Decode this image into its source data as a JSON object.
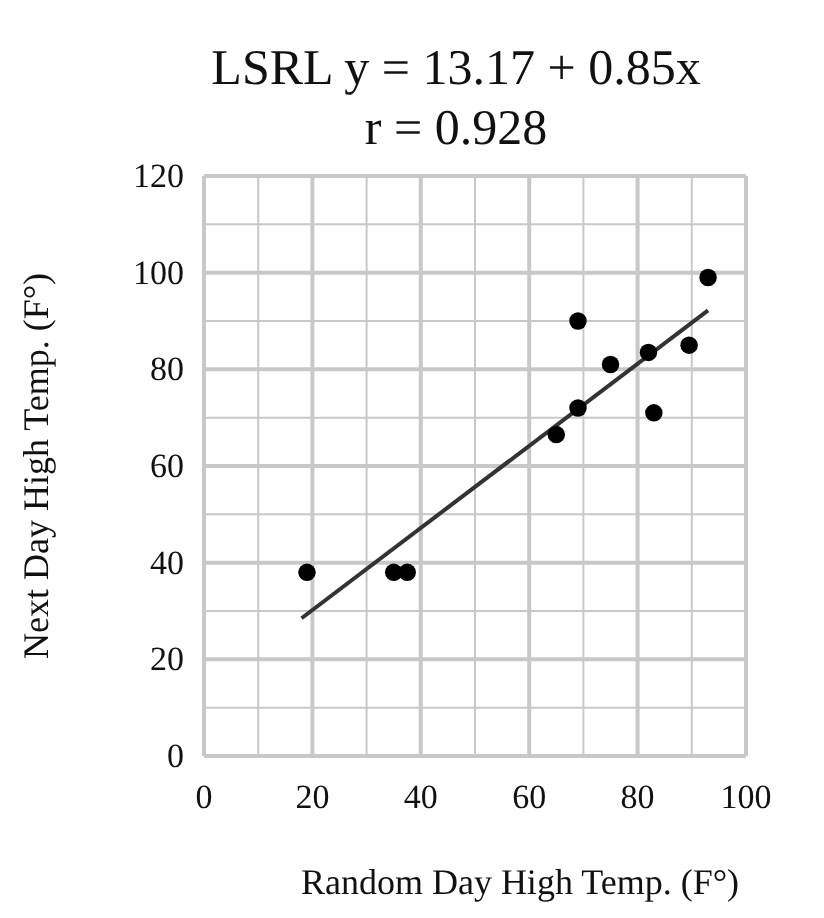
{
  "chart_data": {
    "type": "scatter",
    "title": "LSRL  y = 13.17 + 0.85x",
    "subtitle": "r = 0.928",
    "xlabel": "Random Day High Temp. (F°)",
    "ylabel": "Next Day High Temp. (F°)",
    "series": [
      {
        "color": "#000000",
        "marker": "circle",
        "x": [
          19,
          35,
          37.5,
          65,
          69,
          69,
          75,
          82,
          83,
          89.5,
          93
        ],
        "values": [
          38,
          38,
          38,
          66.5,
          90,
          72,
          81,
          83.5,
          71,
          85,
          99
        ]
      },
      {
        "type": "line",
        "color": "#333333",
        "marker": "none",
        "x": [
          18,
          93
        ],
        "values": [
          28.5,
          92.2
        ]
      }
    ],
    "xlim": [
      0,
      100
    ],
    "ylim": [
      0,
      120
    ],
    "xticks": [
      0,
      {
        "value": 10,
        "label": null
      },
      20,
      {
        "value": 30,
        "label": null
      },
      40,
      {
        "value": 50,
        "label": null
      },
      60,
      {
        "value": 70,
        "label": null
      },
      80,
      {
        "value": 90,
        "label": null
      },
      100
    ],
    "yticks": [
      0,
      {
        "value": 10,
        "label": null
      },
      20,
      {
        "value": 30,
        "label": null
      },
      40,
      {
        "value": 50,
        "label": null
      },
      60,
      {
        "value": 70,
        "label": null
      },
      80,
      {
        "value": 90,
        "label": null
      },
      100,
      {
        "value": 110,
        "label": null
      },
      120
    ],
    "grid": true
  }
}
